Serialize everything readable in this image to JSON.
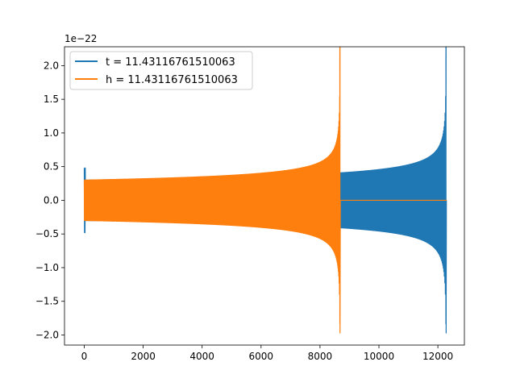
{
  "chart_data": {
    "type": "line",
    "title": "",
    "xlabel": "",
    "ylabel": "",
    "offset_text": "1e−22",
    "xlim": [
      -670,
      12900
    ],
    "ylim": [
      -2.15,
      2.28
    ],
    "xticks": [
      0,
      2000,
      4000,
      6000,
      8000,
      10000,
      12000
    ],
    "xtick_labels": [
      "0",
      "2000",
      "4000",
      "6000",
      "8000",
      "10000",
      "12000"
    ],
    "yticks": [
      -2.0,
      -1.5,
      -1.0,
      -0.5,
      0.0,
      0.5,
      1.0,
      1.5,
      2.0
    ],
    "ytick_labels": [
      "−2.0",
      "−1.5",
      "−1.0",
      "−0.5",
      "0.0",
      "0.5",
      "1.0",
      "1.5",
      "2.0"
    ],
    "grid": false,
    "legend_position": "top-left",
    "series": [
      {
        "name": "t = 11.43116761510063",
        "color": "#1f77b4",
        "x_range": [
          0,
          12300
        ],
        "start_spike": 0.48,
        "base_amplitude": 0.3,
        "merger_x": 12280,
        "peak_positive": 2.07,
        "peak_negative": -1.97
      },
      {
        "name": "h = 11.43116761510063",
        "color": "#ff7f0e",
        "x_range": [
          0,
          12300
        ],
        "base_amplitude": 0.3,
        "merger_x": 8680,
        "peak_positive": 2.07,
        "peak_negative": -1.97,
        "after_merger_value": 0.0
      }
    ]
  }
}
